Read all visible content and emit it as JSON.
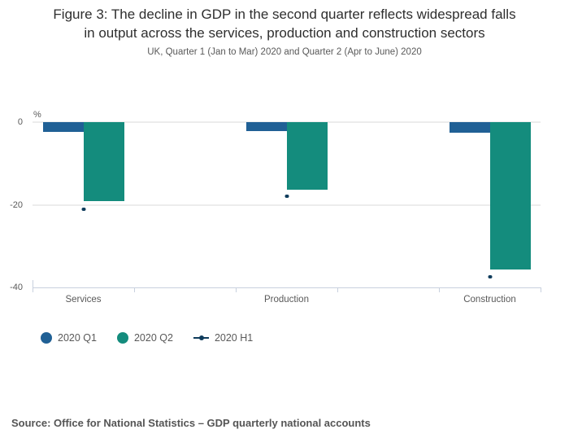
{
  "chart_data": {
    "type": "bar",
    "title": "Figure 3: The decline in GDP in the second quarter reflects widespread falls\nin output across the services, production and construction sectors",
    "subtitle": "UK, Quarter 1 (Jan to Mar) 2020 and Quarter 2 (Apr to June) 2020",
    "unit_label": "%",
    "xlabel": "",
    "ylabel": "%",
    "categories": [
      "Services",
      "Production",
      "Construction"
    ],
    "series": [
      {
        "name": "2020 Q1",
        "color": "#206095",
        "values": [
          -2.3,
          -2.1,
          -2.6
        ]
      },
      {
        "name": "2020 Q2",
        "color": "#148c7d",
        "values": [
          -19.2,
          -16.3,
          -35.7
        ]
      }
    ],
    "h1_markers": {
      "name": "2020 H1",
      "color": "#0f3c5c",
      "values": [
        -21.1,
        -18.0,
        -37.4
      ]
    },
    "ylim": [
      -40,
      0
    ],
    "yticks": [
      0,
      -20,
      -40
    ],
    "grid": true,
    "legend_position": "bottom",
    "legend_entries": [
      "2020 Q1",
      "2020 Q2",
      "2020 H1"
    ]
  },
  "source": "Source: Office for National Statistics – GDP quarterly national accounts"
}
